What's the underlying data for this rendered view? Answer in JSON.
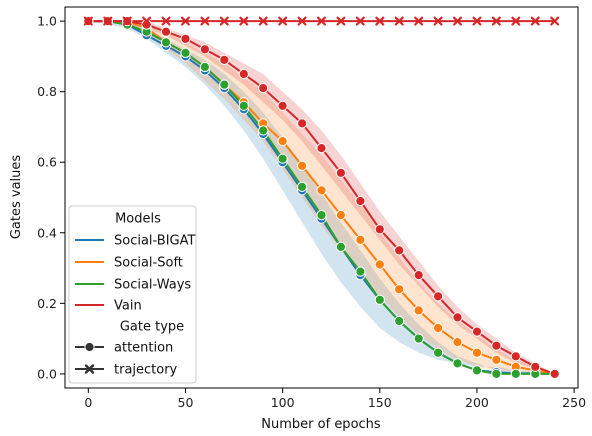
{
  "chart_data": {
    "type": "line",
    "title": "",
    "xlabel": "Number of epochs",
    "ylabel": "Gates values",
    "xlim": [
      -12,
      252
    ],
    "ylim": [
      -0.04,
      1.04
    ],
    "xticks": [
      0,
      50,
      100,
      150,
      200,
      250
    ],
    "yticks": [
      0.0,
      0.2,
      0.4,
      0.6,
      0.8,
      1.0
    ],
    "grid": false,
    "legend": {
      "placement": "lower-left",
      "models_title": "Models",
      "gate_title": "Gate type",
      "gate_entries": [
        {
          "label": "attention",
          "marker": "circle"
        },
        {
          "label": "trajectory",
          "marker": "x"
        }
      ]
    },
    "x": [
      0,
      10,
      20,
      30,
      40,
      50,
      60,
      70,
      80,
      90,
      100,
      110,
      120,
      130,
      140,
      150,
      160,
      170,
      180,
      190,
      200,
      210,
      220,
      230,
      240
    ],
    "series": [
      {
        "name": "Social-BIGAT",
        "color": "#1f77b4",
        "values": [
          1.0,
          1.0,
          0.99,
          0.96,
          0.93,
          0.9,
          0.86,
          0.81,
          0.75,
          0.68,
          0.6,
          0.52,
          0.44,
          0.36,
          0.28,
          0.21,
          0.15,
          0.1,
          0.06,
          0.03,
          0.01,
          0.005,
          0.002,
          0.001,
          0.0
        ],
        "band_low": [
          1.0,
          0.99,
          0.98,
          0.95,
          0.91,
          0.87,
          0.82,
          0.76,
          0.69,
          0.61,
          0.52,
          0.43,
          0.34,
          0.26,
          0.19,
          0.13,
          0.09,
          0.06,
          0.04,
          0.03,
          0.02,
          0.02,
          0.01,
          0.005,
          0.0
        ],
        "band_high": [
          1.0,
          1.0,
          1.0,
          0.98,
          0.95,
          0.92,
          0.89,
          0.85,
          0.8,
          0.74,
          0.67,
          0.59,
          0.51,
          0.43,
          0.35,
          0.27,
          0.2,
          0.14,
          0.09,
          0.05,
          0.03,
          0.01,
          0.005,
          0.002,
          0.0
        ]
      },
      {
        "name": "Social-Soft",
        "color": "#ff7f0e",
        "values": [
          1.0,
          1.0,
          1.0,
          0.98,
          0.94,
          0.91,
          0.87,
          0.82,
          0.77,
          0.71,
          0.66,
          0.59,
          0.52,
          0.45,
          0.38,
          0.31,
          0.24,
          0.18,
          0.13,
          0.09,
          0.06,
          0.04,
          0.02,
          0.01,
          0.0
        ],
        "band_low": [
          1.0,
          1.0,
          0.99,
          0.96,
          0.92,
          0.88,
          0.83,
          0.78,
          0.72,
          0.66,
          0.58,
          0.5,
          0.42,
          0.35,
          0.28,
          0.22,
          0.16,
          0.11,
          0.07,
          0.04,
          0.02,
          0.01,
          0.005,
          0.003,
          0.0
        ],
        "band_high": [
          1.0,
          1.0,
          1.0,
          0.99,
          0.97,
          0.94,
          0.91,
          0.88,
          0.84,
          0.8,
          0.74,
          0.68,
          0.62,
          0.55,
          0.48,
          0.4,
          0.33,
          0.26,
          0.2,
          0.15,
          0.11,
          0.07,
          0.04,
          0.02,
          0.0
        ]
      },
      {
        "name": "Social-Ways",
        "color": "#2ca02c",
        "values": [
          1.0,
          1.0,
          0.99,
          0.97,
          0.94,
          0.91,
          0.87,
          0.82,
          0.76,
          0.69,
          0.61,
          0.53,
          0.45,
          0.36,
          0.29,
          0.21,
          0.15,
          0.1,
          0.06,
          0.03,
          0.01,
          0.0,
          0.0,
          0.0,
          0.0
        ]
      },
      {
        "name": "Vain",
        "color": "#d62728",
        "values": [
          1.0,
          1.0,
          1.0,
          0.99,
          0.97,
          0.95,
          0.92,
          0.89,
          0.85,
          0.81,
          0.76,
          0.71,
          0.64,
          0.57,
          0.49,
          0.41,
          0.35,
          0.28,
          0.22,
          0.16,
          0.12,
          0.08,
          0.05,
          0.02,
          0.0
        ],
        "trajectory_values": [
          1.0,
          1.0,
          1.0,
          1.0,
          1.0,
          1.0,
          1.0,
          1.0,
          1.0,
          1.0,
          1.0,
          1.0,
          1.0,
          1.0,
          1.0,
          1.0,
          1.0,
          1.0,
          1.0,
          1.0,
          1.0,
          1.0,
          1.0,
          1.0,
          1.0
        ],
        "band_low": [
          1.0,
          1.0,
          0.99,
          0.98,
          0.96,
          0.93,
          0.9,
          0.86,
          0.82,
          0.77,
          0.72,
          0.66,
          0.59,
          0.52,
          0.45,
          0.38,
          0.31,
          0.25,
          0.19,
          0.14,
          0.1,
          0.06,
          0.03,
          0.015,
          0.0
        ],
        "band_high": [
          1.0,
          1.0,
          1.0,
          1.0,
          0.98,
          0.96,
          0.94,
          0.91,
          0.88,
          0.85,
          0.8,
          0.75,
          0.69,
          0.62,
          0.54,
          0.46,
          0.39,
          0.32,
          0.25,
          0.19,
          0.14,
          0.1,
          0.06,
          0.03,
          0.0
        ]
      }
    ]
  }
}
